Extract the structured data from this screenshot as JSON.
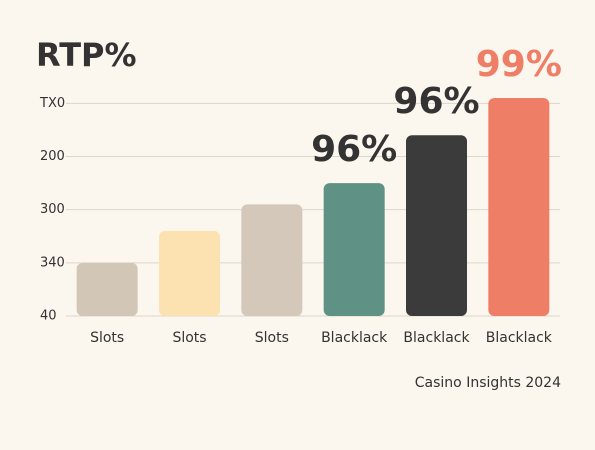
{
  "chart_data": {
    "type": "bar",
    "title": "RTP%",
    "categories": [
      "Slots",
      "Slots",
      "Slots",
      "Blacklack",
      "Blacklack",
      "Blacklack"
    ],
    "values": [
      1.0,
      1.6,
      2.1,
      2.5,
      3.4,
      4.1
    ],
    "colors": [
      "#d2c6b7",
      "#fde2b1",
      "#d3c8ba",
      "#5f9284",
      "#3b3b3b",
      "#ef7e66"
    ],
    "bar_annotations": [
      null,
      null,
      null,
      "96%",
      "96%",
      "99%"
    ],
    "annotation_colors": [
      null,
      null,
      null,
      "#333333",
      "#333333",
      "#ef7e66"
    ],
    "ylim": [
      0,
      4.1
    ],
    "yticks": [
      {
        "value": 0,
        "label": "40"
      },
      {
        "value": 1,
        "label": "340"
      },
      {
        "value": 2,
        "label": "300"
      },
      {
        "value": 3,
        "label": "200"
      },
      {
        "value": 4,
        "label": "TX0"
      }
    ],
    "grid": true,
    "footer": "Casino Insights 2024"
  }
}
